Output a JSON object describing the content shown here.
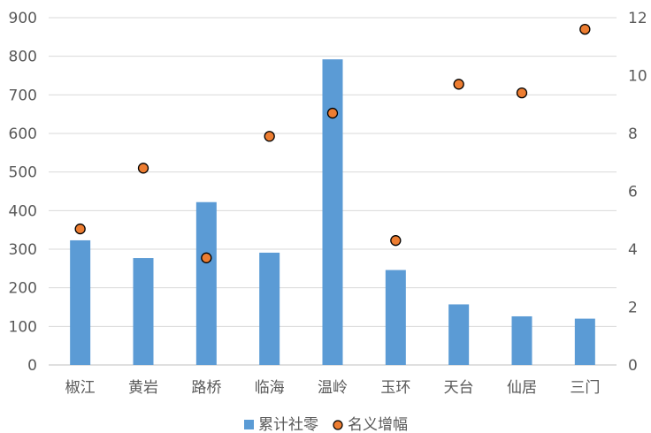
{
  "chart_data": {
    "type": "bar",
    "title": "",
    "xlabel": "",
    "ylabel": "",
    "y2label": "",
    "categories": [
      "椒江",
      "黄岩",
      "路桥",
      "临海",
      "温岭",
      "玉环",
      "天台",
      "仙居",
      "三门"
    ],
    "series": [
      {
        "name": "累计社零",
        "type": "bar",
        "axis": "left",
        "color": "#5B9BD5",
        "values": [
          323,
          277,
          422,
          291,
          792,
          246,
          157,
          126,
          120
        ]
      },
      {
        "name": "名义增幅",
        "type": "scatter",
        "axis": "right",
        "color": "#ED7D31",
        "values": [
          4.7,
          6.8,
          3.7,
          7.9,
          8.7,
          4.3,
          9.7,
          9.4,
          11.6
        ]
      }
    ],
    "ylim": [
      0,
      900
    ],
    "yticks": [
      "0",
      "100",
      "200",
      "300",
      "400",
      "500",
      "600",
      "700",
      "800",
      "900"
    ],
    "y2lim": [
      0,
      12
    ],
    "y2ticks": [
      "0",
      "2",
      "4",
      "6",
      "8",
      "10",
      "12"
    ],
    "grid": true,
    "legend_position": "bottom"
  }
}
